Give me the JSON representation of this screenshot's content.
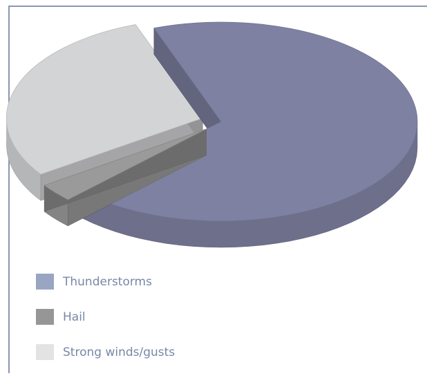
{
  "chart_data": {
    "type": "pie",
    "three_d": true,
    "exploded": [
      "Hail",
      "Strong winds/gusts"
    ],
    "title": "",
    "categories": [
      "Thunderstorms",
      "Hail",
      "Strong winds/gusts"
    ],
    "values": [
      68,
      3,
      29
    ],
    "colors": [
      "#7f81a2",
      "#9a9a9a",
      "#d3d4d6"
    ],
    "legend_colors": [
      "#98a6c3",
      "#969696",
      "#e3e3e3"
    ],
    "legend_position": "bottom-left"
  },
  "legend": {
    "items": [
      {
        "label": "Thunderstorms",
        "color": "#98a6c3"
      },
      {
        "label": "Hail",
        "color": "#969696"
      },
      {
        "label": "Strong winds/gusts",
        "color": "#e3e3e3"
      }
    ]
  }
}
